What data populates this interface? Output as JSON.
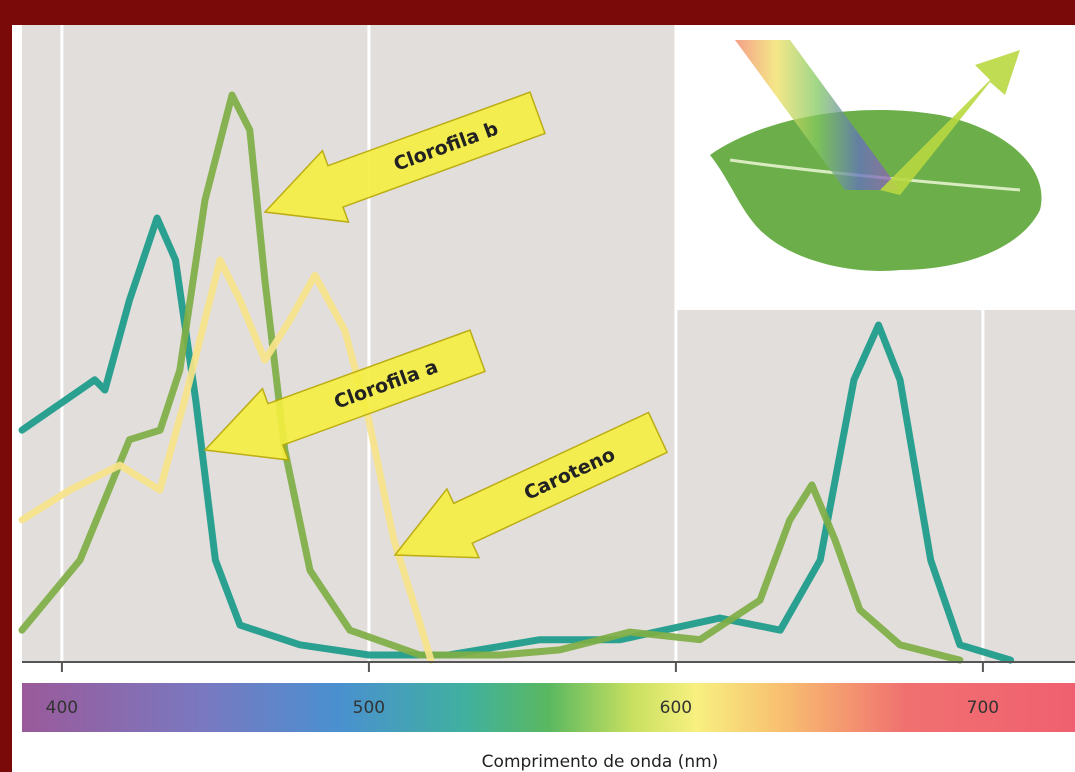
{
  "chart_data": {
    "type": "line",
    "x_label": "Comprimento de onda (nm)",
    "xlim": [
      387,
      730
    ],
    "xticks": [
      400,
      500,
      600,
      700
    ],
    "ylim": [
      0,
      1
    ],
    "grid": true,
    "series": [
      {
        "name": "Clorofila a",
        "color": "#1a9a8a",
        "x": [
          387,
          410.7,
          414,
          422,
          431,
          437,
          443.6,
          450,
          458,
          477.5,
          500,
          526,
          555.7,
          581.8,
          614.3,
          634,
          647,
          658,
          666,
          673,
          683,
          692.5,
          709
        ],
        "values": [
          0.364,
          0.443,
          0.427,
          0.568,
          0.697,
          0.631,
          0.411,
          0.16,
          0.058,
          0.027,
          0.011,
          0.011,
          0.035,
          0.035,
          0.069,
          0.05,
          0.16,
          0.443,
          0.529,
          0.443,
          0.16,
          0.027,
          0.003
        ]
      },
      {
        "name": "Clorofila b",
        "color": "#7fae45",
        "x": [
          387,
          405.9,
          422,
          432,
          438.4,
          446.6,
          455.4,
          461.2,
          466.1,
          472.6,
          480.8,
          493.8,
          516.6,
          542.7,
          562.2,
          585,
          607.8,
          627.4,
          637.1,
          644.3,
          651.8,
          659.9,
          673,
          692.5
        ],
        "values": [
          0.05,
          0.16,
          0.349,
          0.364,
          0.458,
          0.725,
          0.89,
          0.835,
          0.6,
          0.333,
          0.144,
          0.05,
          0.011,
          0.011,
          0.019,
          0.047,
          0.035,
          0.097,
          0.223,
          0.278,
          0.192,
          0.082,
          0.027,
          0.003
        ]
      },
      {
        "name": "Caroteno",
        "color": "#f7e38a",
        "x": [
          387,
          402.6,
          418.9,
          431.9,
          440,
          451.5,
          458,
          466.1,
          474.3,
          482.4,
          492.2,
          500,
          508.1,
          516.3,
          520.2
        ],
        "values": [
          0.223,
          0.27,
          0.309,
          0.27,
          0.411,
          0.631,
          0.568,
          0.474,
          0.537,
          0.607,
          0.52,
          0.379,
          0.192,
          0.066,
          0.003
        ]
      }
    ]
  }
}
